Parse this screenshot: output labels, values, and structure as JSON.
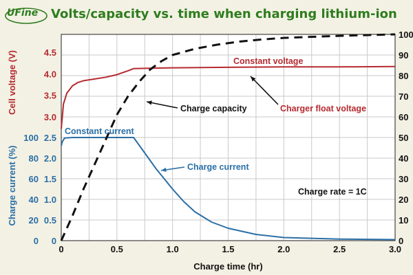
{
  "logo_text": "UFine",
  "chart_data": {
    "type": "line",
    "title": "Volts/capacity vs. time when charging lithium-ion",
    "xlabel": "Charge time (hr)",
    "xlim": [
      0,
      3.0
    ],
    "x_ticks": [
      "0",
      "0.5",
      "1.0",
      "1.5",
      "2.0",
      "2.5",
      "3.0"
    ],
    "x_tick_values": [
      0,
      0.5,
      1.0,
      1.5,
      2.0,
      2.5,
      3.0
    ],
    "y_left_voltage": {
      "label": "Cell voltage (V)",
      "ticks": [
        "3.0",
        "3.5",
        "4.0",
        "4.5"
      ],
      "tick_values": [
        3.0,
        3.5,
        4.0,
        4.5
      ]
    },
    "y_left_current": {
      "label": "Charge current (%)",
      "ticks": [
        "0",
        "20",
        "40",
        "60",
        "80",
        "100"
      ],
      "tick_values": [
        0,
        20,
        40,
        60,
        80,
        100
      ]
    },
    "y_left_combined_ticks": [
      "0",
      "0.5",
      "1.0",
      "1.5",
      "2.0",
      "2.5"
    ],
    "y_left_combined_tick_values": [
      0,
      0.5,
      1.0,
      1.5,
      2.0,
      2.5
    ],
    "y_right": {
      "ticks": [
        "0",
        "10",
        "20",
        "30",
        "40",
        "50",
        "60",
        "70",
        "80",
        "90",
        "100"
      ],
      "tick_values": [
        0,
        10,
        20,
        30,
        40,
        50,
        60,
        70,
        80,
        90,
        100
      ],
      "ylim": [
        0,
        100
      ]
    },
    "grid": true,
    "series": [
      {
        "name": "Cell voltage",
        "axis": "left-volts",
        "color": "#b52a2f",
        "x": [
          0,
          0.02,
          0.05,
          0.1,
          0.15,
          0.2,
          0.3,
          0.4,
          0.5,
          0.6,
          0.65,
          0.8,
          1.0,
          1.5,
          2.0,
          2.5,
          3.0
        ],
        "y": [
          2.72,
          3.3,
          3.55,
          3.72,
          3.8,
          3.84,
          3.88,
          3.92,
          3.98,
          4.07,
          4.12,
          4.13,
          4.14,
          4.15,
          4.16,
          4.16,
          4.17
        ]
      },
      {
        "name": "Charge current",
        "axis": "left-current",
        "color": "#2a6fa6",
        "x": [
          0,
          0.01,
          0.03,
          0.1,
          0.3,
          0.5,
          0.65,
          0.75,
          0.85,
          1.0,
          1.1,
          1.2,
          1.35,
          1.5,
          1.75,
          2.0,
          2.5,
          3.0
        ],
        "y": [
          92,
          96,
          99.5,
          100,
          100,
          100,
          100,
          85,
          70,
          50,
          38,
          28,
          18,
          12,
          6,
          3,
          1.5,
          1
        ]
      },
      {
        "name": "Charge capacity",
        "axis": "right",
        "color": "#111111",
        "style": "dashed",
        "x": [
          0,
          0.1,
          0.2,
          0.3,
          0.4,
          0.5,
          0.6,
          0.7,
          0.8,
          0.9,
          1.0,
          1.2,
          1.4,
          1.6,
          1.8,
          2.0,
          2.5,
          3.0
        ],
        "y": [
          0,
          12,
          25,
          37,
          49,
          61,
          70,
          77,
          83,
          87,
          90,
          93,
          95,
          96.5,
          97.5,
          98.3,
          99.3,
          100
        ]
      }
    ],
    "annotations": [
      "Constant voltage",
      "Charge capacity",
      "Charger float voltage",
      "Constant current",
      "Charge current",
      "Charge rate = 1C"
    ],
    "colors": {
      "voltage": "#b52a2f",
      "current": "#2a6fa6",
      "title": "#2e7d1e",
      "background": "#f3f1e4"
    }
  }
}
